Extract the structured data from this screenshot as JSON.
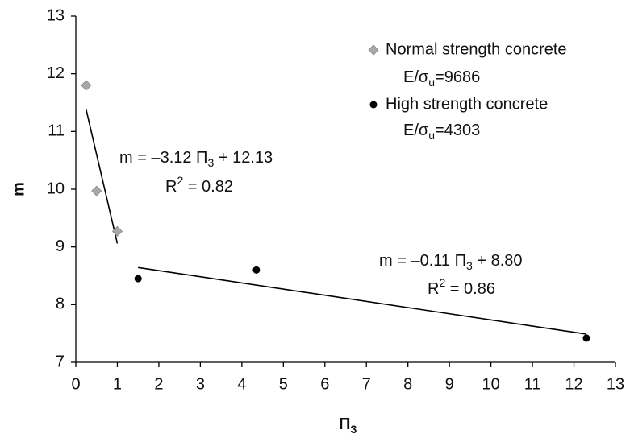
{
  "chart_data": {
    "type": "scatter",
    "xlabel": [
      "Π",
      "3"
    ],
    "ylabel": "m",
    "xlim": [
      0,
      13
    ],
    "ylim": [
      7,
      13
    ],
    "xticks": [
      0,
      1,
      2,
      3,
      4,
      5,
      6,
      7,
      8,
      9,
      10,
      11,
      12,
      13
    ],
    "yticks": [
      7,
      8,
      9,
      10,
      11,
      12,
      13
    ],
    "grid": false,
    "legend": "upper right",
    "trendline": true,
    "series": [
      {
        "name": "Normal strength concrete",
        "color": "#a8a8a8",
        "marker": "diamond",
        "note": [
          "E/σ",
          "u",
          "=9686"
        ],
        "x": [
          0.25,
          0.5,
          1.0
        ],
        "values": [
          11.8,
          9.97,
          9.27
        ],
        "equation": [
          "m = –3.12 Π",
          "3",
          " + 12.13"
        ],
        "r2": [
          "R",
          "2",
          " = 0.82"
        ]
      },
      {
        "name": "High strength concrete",
        "color": "#000000",
        "marker": "circle",
        "note": [
          "E/σ",
          "u",
          "=4303"
        ],
        "x": [
          1.5,
          4.35,
          12.3
        ],
        "values": [
          8.45,
          8.6,
          7.42
        ],
        "equation": [
          "m = –0.11 Π",
          "3",
          " + 8.80"
        ],
        "r2": [
          "R",
          "2",
          " = 0.86"
        ]
      }
    ]
  }
}
